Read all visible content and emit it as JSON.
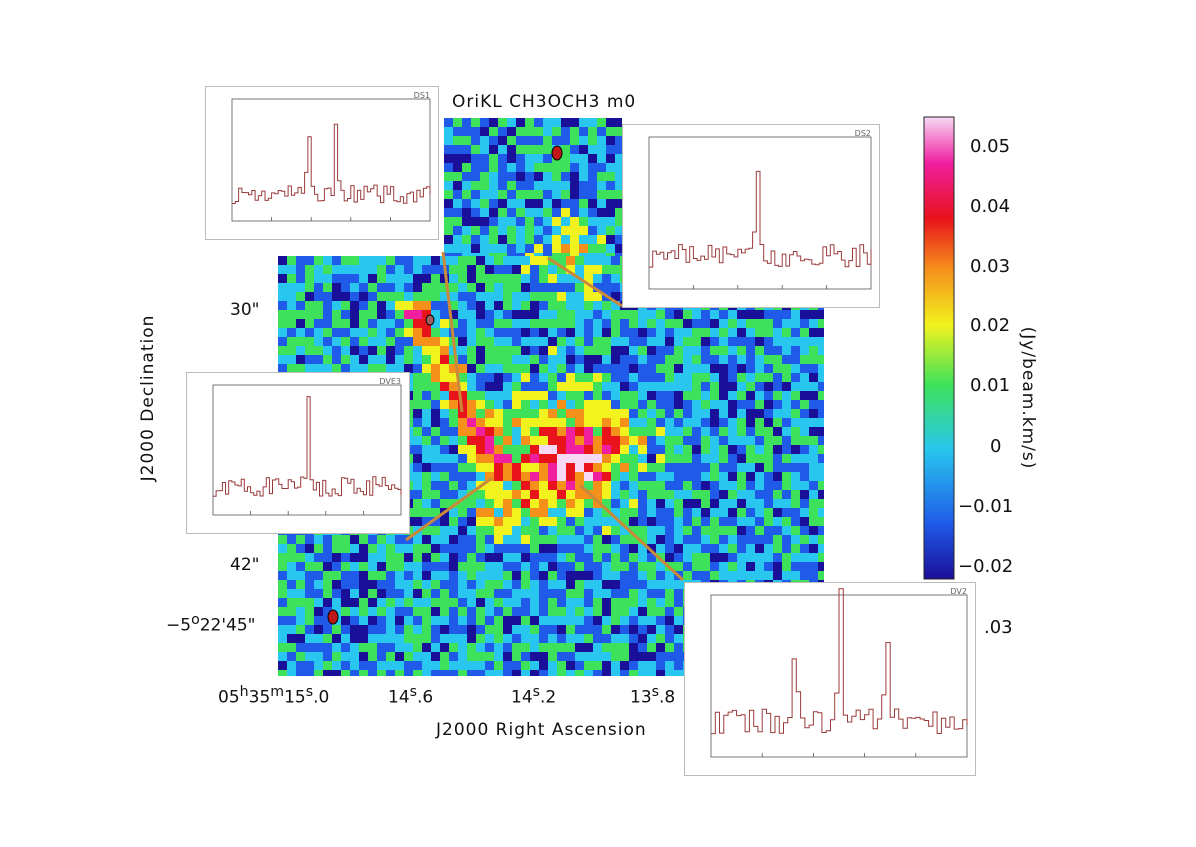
{
  "title": "OriKL CH3OCH3 m0",
  "xlabel": "J2000 Right Ascension",
  "ylabel": "J2000 Declination",
  "x_ticks": [
    {
      "label_html": "05<sup>h</sup>35<sup>m</sup>15<sup>s</sup>.0"
    },
    {
      "label_html": "14<sup>s</sup>.6"
    },
    {
      "label_html": "14<sup>s</sup>.2"
    },
    {
      "label_html": "13<sup>s</sup>.8"
    }
  ],
  "y_ticks": [
    {
      "label_html": "30\""
    },
    {
      "label_html": "42\""
    },
    {
      "label_html": "&minus;5<sup>o</sup>22'45\""
    }
  ],
  "colorbar": {
    "label": "(Jy/beam.km/s)",
    "ticks": [
      "0.05",
      "0.04",
      "0.03",
      "0.02",
      "0.01",
      "0",
      "−0.01",
      "−0.02"
    ],
    "range": [
      -0.022,
      0.054
    ],
    "colors": [
      "#1a0f99",
      "#1f5be8",
      "#29c6ef",
      "#3de25a",
      "#f2f21e",
      "#f5901b",
      "#e8131b",
      "#f01fa0",
      "#f7d9f5"
    ]
  },
  "stray_text": ".03",
  "insets": [
    {
      "tag": "DS1"
    },
    {
      "tag": "DS2"
    },
    {
      "tag": "DVE3"
    },
    {
      "tag": "DV2"
    }
  ],
  "chart_data": {
    "type": "heatmap",
    "title": "OriKL CH3OCH3 m0",
    "xlabel": "J2000 Right Ascension",
    "ylabel": "J2000 Declination",
    "colorbar_label": "(Jy/beam.km/s)",
    "colorbar_range": [
      -0.022,
      0.054
    ],
    "x_tick_labels": [
      "05h35m15s.0",
      "14s.6",
      "14s.2",
      "13s.8"
    ],
    "y_tick_labels": [
      "30\"",
      "42\"",
      "-5o22'45\""
    ],
    "inset_spectra": 4
  }
}
